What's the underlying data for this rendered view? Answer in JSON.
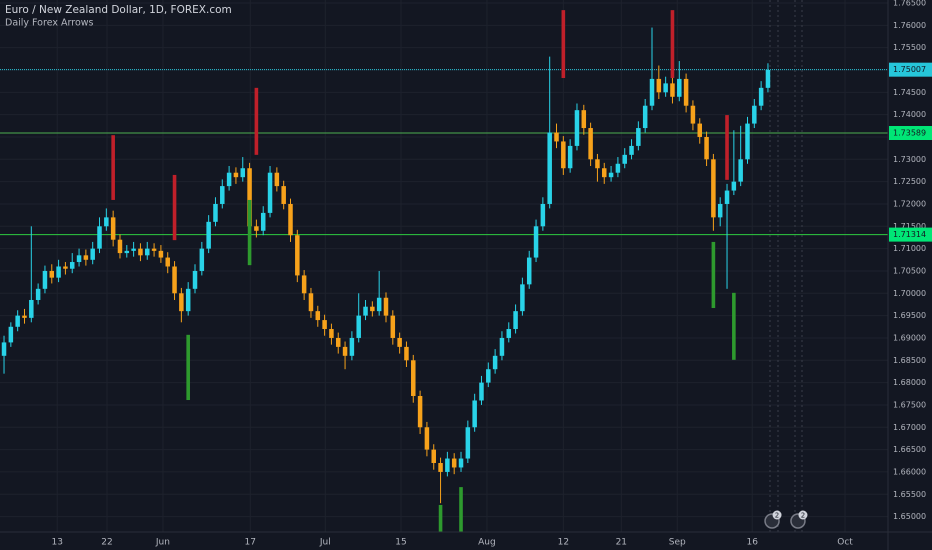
{
  "chart_data": {
    "type": "candlestick",
    "title": "Euro / New Zealand Dollar, 1D, FOREX.com",
    "subtitle": "Daily Forex Arrows",
    "up_color": "#29d3e8",
    "down_color": "#f7a21b",
    "sell_color": "#c0202a",
    "buy_color": "#2e9a2e",
    "grid": true,
    "xlim": [
      -0.59,
      129.6
    ],
    "ylim": [
      1.64655,
      1.76567
    ],
    "xticks": [
      {
        "value": 7.8,
        "label": "13"
      },
      {
        "value": 15.1,
        "label": "22"
      },
      {
        "value": 23.3,
        "label": "Jun"
      },
      {
        "value": 36.1,
        "label": "17"
      },
      {
        "value": 47.1,
        "label": "Jul"
      },
      {
        "value": 58.2,
        "label": "15"
      },
      {
        "value": 70.8,
        "label": "Aug"
      },
      {
        "value": 82.0,
        "label": "12"
      },
      {
        "value": 90.5,
        "label": "21"
      },
      {
        "value": 98.7,
        "label": "Sep"
      },
      {
        "value": 109.7,
        "label": "16"
      },
      {
        "value": 123.3,
        "label": "Oct"
      }
    ],
    "yticks": [
      {
        "value": 1.65,
        "label": "1.65000"
      },
      {
        "value": 1.655,
        "label": "1.65500"
      },
      {
        "value": 1.66,
        "label": "1.66000"
      },
      {
        "value": 1.665,
        "label": "1.66500"
      },
      {
        "value": 1.67,
        "label": "1.67000"
      },
      {
        "value": 1.675,
        "label": "1.67500"
      },
      {
        "value": 1.68,
        "label": "1.68000"
      },
      {
        "value": 1.685,
        "label": "1.68500"
      },
      {
        "value": 1.69,
        "label": "1.69000"
      },
      {
        "value": 1.695,
        "label": "1.69500"
      },
      {
        "value": 1.7,
        "label": "1.70000"
      },
      {
        "value": 1.705,
        "label": "1.70500"
      },
      {
        "value": 1.71,
        "label": "1.71000"
      },
      {
        "value": 1.715,
        "label": "1.71500"
      },
      {
        "value": 1.72,
        "label": "1.72000"
      },
      {
        "value": 1.725,
        "label": "1.72500"
      },
      {
        "value": 1.73,
        "label": "1.73000"
      },
      {
        "value": 1.735,
        "label": "1.73500"
      },
      {
        "value": 1.74,
        "label": "1.74000"
      },
      {
        "value": 1.745,
        "label": "1.74500"
      },
      {
        "value": 1.75,
        "label": "1.75000"
      },
      {
        "value": 1.755,
        "label": "1.75500"
      },
      {
        "value": 1.76,
        "label": "1.76000"
      },
      {
        "value": 1.765,
        "label": "1.76500"
      }
    ],
    "open": [
      1.686,
      1.689,
      1.6925,
      1.695,
      1.6945,
      1.6985,
      1.701,
      1.705,
      1.7035,
      1.706,
      1.7055,
      1.707,
      1.7085,
      1.7075,
      1.71,
      1.715,
      1.717,
      1.712,
      1.709,
      1.7095,
      1.71,
      1.7085,
      1.71,
      1.7095,
      1.708,
      1.706,
      1.7,
      1.696,
      1.701,
      1.705,
      1.71,
      1.716,
      1.72,
      1.724,
      1.727,
      1.726,
      1.728,
      1.715,
      1.714,
      1.718,
      1.727,
      1.724,
      1.72,
      1.713,
      1.704,
      1.7,
      1.696,
      1.694,
      1.692,
      1.69,
      1.688,
      1.686,
      1.69,
      1.695,
      1.697,
      1.696,
      1.699,
      1.695,
      1.69,
      1.688,
      1.685,
      1.677,
      1.67,
      1.665,
      1.662,
      1.66,
      1.663,
      1.661,
      1.663,
      1.67,
      1.676,
      1.68,
      1.683,
      1.686,
      1.69,
      1.692,
      1.696,
      1.702,
      1.708,
      1.715,
      1.72,
      1.736,
      1.734,
      1.728,
      1.733,
      1.741,
      1.737,
      1.73,
      1.728,
      1.726,
      1.727,
      1.729,
      1.731,
      1.733,
      1.737,
      1.742,
      1.748,
      1.745,
      1.747,
      1.744,
      1.748,
      1.742,
      1.738,
      1.735,
      1.73,
      1.717,
      1.72,
      1.723,
      1.725,
      1.73,
      1.738,
      1.742,
      1.746
    ],
    "high": [
      1.6905,
      1.6935,
      1.6962,
      1.6965,
      1.715,
      1.7022,
      1.7062,
      1.7065,
      1.7075,
      1.707,
      1.709,
      1.71,
      1.7098,
      1.7115,
      1.717,
      1.719,
      1.7185,
      1.7132,
      1.7108,
      1.7115,
      1.7112,
      1.7115,
      1.7112,
      1.7108,
      1.7092,
      1.7072,
      1.7012,
      1.7025,
      1.7065,
      1.7115,
      1.7175,
      1.7215,
      1.7255,
      1.7285,
      1.7282,
      1.7305,
      1.7292,
      1.7165,
      1.7195,
      1.7285,
      1.7282,
      1.7252,
      1.7212,
      1.7142,
      1.7052,
      1.7012,
      1.6972,
      1.6952,
      1.6932,
      1.6912,
      1.6892,
      1.6915,
      1.7,
      1.6985,
      1.6982,
      1.705,
      1.7002,
      1.6962,
      1.6912,
      1.6892,
      1.6862,
      1.6782,
      1.6712,
      1.6662,
      1.6632,
      1.6645,
      1.6642,
      1.6645,
      1.6715,
      1.6775,
      1.6815,
      1.6845,
      1.6875,
      1.6915,
      1.6935,
      1.6975,
      1.7035,
      1.7095,
      1.7165,
      1.7215,
      1.753,
      1.738,
      1.7352,
      1.7345,
      1.7425,
      1.7422,
      1.7382,
      1.7312,
      1.7292,
      1.7285,
      1.7305,
      1.7325,
      1.7345,
      1.7385,
      1.7435,
      1.7595,
      1.751,
      1.7485,
      1.7482,
      1.752,
      1.7492,
      1.7432,
      1.7392,
      1.7362,
      1.7312,
      1.7215,
      1.7245,
      1.7365,
      1.7375,
      1.7395,
      1.7435,
      1.7475,
      1.7515
    ],
    "low": [
      1.682,
      1.688,
      1.6915,
      1.6932,
      1.6935,
      1.6975,
      1.7,
      1.7022,
      1.7025,
      1.7042,
      1.7045,
      1.706,
      1.7062,
      1.7065,
      1.709,
      1.714,
      1.7105,
      1.7078,
      1.708,
      1.7082,
      1.7072,
      1.7075,
      1.7082,
      1.7068,
      1.7045,
      1.6985,
      1.6935,
      1.695,
      1.7,
      1.704,
      1.709,
      1.715,
      1.719,
      1.723,
      1.7245,
      1.725,
      1.7135,
      1.7125,
      1.713,
      1.717,
      1.7228,
      1.7188,
      1.7115,
      1.7025,
      1.6985,
      1.6945,
      1.6925,
      1.6905,
      1.6885,
      1.6865,
      1.683,
      1.685,
      1.689,
      1.694,
      1.6948,
      1.695,
      1.6935,
      1.6885,
      1.6865,
      1.6835,
      1.6755,
      1.6685,
      1.6635,
      1.6605,
      1.653,
      1.659,
      1.6595,
      1.66,
      1.662,
      1.669,
      1.675,
      1.679,
      1.682,
      1.685,
      1.689,
      1.691,
      1.695,
      1.701,
      1.707,
      1.714,
      1.719,
      1.7325,
      1.7265,
      1.727,
      1.732,
      1.7355,
      1.7285,
      1.725,
      1.7245,
      1.725,
      1.726,
      1.728,
      1.73,
      1.732,
      1.736,
      1.741,
      1.7435,
      1.744,
      1.7425,
      1.743,
      1.7405,
      1.7365,
      1.7335,
      1.7285,
      1.714,
      1.715,
      1.701,
      1.722,
      1.724,
      1.729,
      1.737,
      1.741,
      1.745
    ],
    "close": [
      1.689,
      1.6925,
      1.695,
      1.6945,
      1.6985,
      1.701,
      1.705,
      1.7035,
      1.706,
      1.7055,
      1.707,
      1.7085,
      1.7075,
      1.71,
      1.715,
      1.717,
      1.712,
      1.709,
      1.7095,
      1.71,
      1.7085,
      1.71,
      1.7095,
      1.708,
      1.706,
      1.7,
      1.696,
      1.701,
      1.705,
      1.71,
      1.716,
      1.72,
      1.724,
      1.727,
      1.726,
      1.728,
      1.715,
      1.714,
      1.718,
      1.727,
      1.724,
      1.72,
      1.713,
      1.704,
      1.7,
      1.696,
      1.694,
      1.692,
      1.69,
      1.688,
      1.686,
      1.69,
      1.695,
      1.697,
      1.696,
      1.699,
      1.695,
      1.69,
      1.688,
      1.685,
      1.677,
      1.67,
      1.665,
      1.662,
      1.66,
      1.663,
      1.661,
      1.663,
      1.67,
      1.676,
      1.68,
      1.683,
      1.686,
      1.69,
      1.692,
      1.696,
      1.702,
      1.708,
      1.715,
      1.72,
      1.736,
      1.734,
      1.728,
      1.733,
      1.741,
      1.737,
      1.73,
      1.728,
      1.726,
      1.727,
      1.729,
      1.731,
      1.733,
      1.737,
      1.742,
      1.748,
      1.745,
      1.747,
      1.744,
      1.748,
      1.742,
      1.738,
      1.735,
      1.73,
      1.717,
      1.72,
      1.723,
      1.725,
      1.73,
      1.738,
      1.742,
      1.746,
      1.75
    ],
    "sell_signals": [
      {
        "x": 16,
        "top": 1.7354,
        "bottom": 1.7209
      },
      {
        "x": 25,
        "top": 1.7265,
        "bottom": 1.7119
      },
      {
        "x": 37,
        "top": 1.746,
        "bottom": 1.731
      },
      {
        "x": 82,
        "top": 1.7634,
        "bottom": 1.7482
      },
      {
        "x": 98,
        "top": 1.7634,
        "bottom": 1.7482
      },
      {
        "x": 106,
        "top": 1.7399,
        "bottom": 1.7254
      }
    ],
    "buy_signals": [
      {
        "x": 27,
        "top": 1.6907,
        "bottom": 1.6761
      },
      {
        "x": 36,
        "top": 1.7209,
        "bottom": 1.7063
      },
      {
        "x": 64,
        "top": 1.6526,
        "bottom": 1.6466
      },
      {
        "x": 67,
        "top": 1.6566,
        "bottom": 1.6466
      },
      {
        "x": 104,
        "top": 1.7115,
        "bottom": 1.6967
      },
      {
        "x": 107,
        "top": 1.7001,
        "bottom": 1.6851
      }
    ],
    "levels": [
      {
        "value": 1.75007,
        "color": "#26c6da",
        "label_color": "#26c6da"
      },
      {
        "value": 1.73589,
        "color": "#4caf50",
        "label_color": "#00e676"
      },
      {
        "value": 1.71314,
        "color": "#2ecc40",
        "label_color": "#00e676"
      }
    ],
    "event_badges": [
      {
        "x": 112.6,
        "label": "2"
      },
      {
        "x": 116.4,
        "label": "2"
      }
    ]
  }
}
